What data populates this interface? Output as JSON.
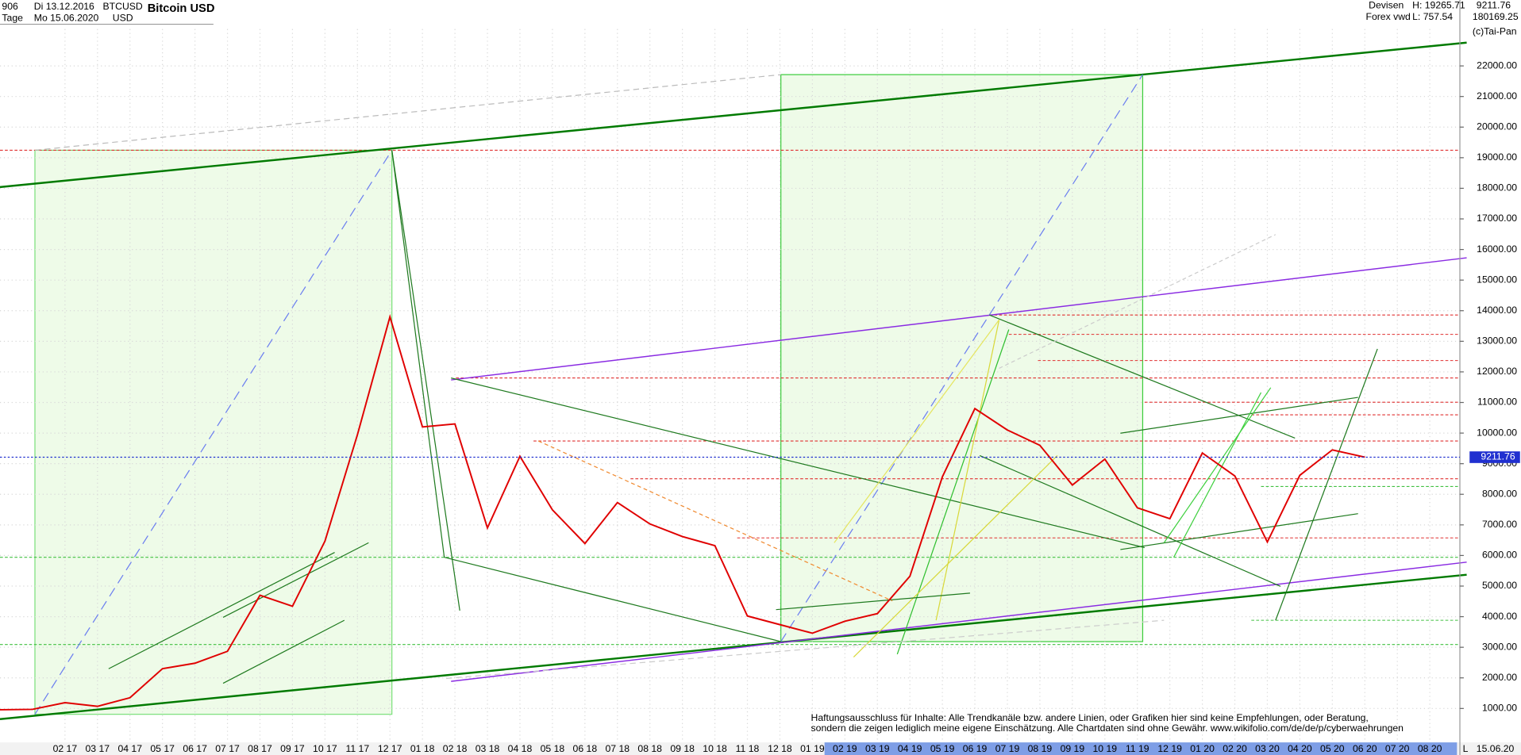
{
  "header": {
    "count": "906",
    "start_date": "Di 13.12.2016",
    "period": "Tage",
    "end_date": "Mo 15.06.2020",
    "symbol": "BTCUSD",
    "currency": "USD",
    "title": "Bitcoin USD",
    "market": "Devisen",
    "source": "Forex vwd",
    "high": "H: 19265.71",
    "low": "L: 757.54",
    "volume": "180169.25",
    "copyright": "(c)Tai-Pan"
  },
  "disclaimer": [
    "Haftungsausschluss für Inhalte: Alle Trendkanäle bzw. andere Linien, oder Grafiken hier sind keine Empfehlungen, oder Beratung,",
    "sondern die zeigen lediglich meine eigene Einschätzung. Alle Chartdaten sind ohne Gewähr.  www.wikifolio.com/de/de/p/cyberwaehrungen"
  ],
  "chart_data": {
    "type": "line",
    "title": "Bitcoin USD",
    "categories": [
      null,
      null,
      "02 17",
      "03 17",
      "04 17",
      "05 17",
      "06 17",
      "07 17",
      "08 17",
      "09 17",
      "10 17",
      "11 17",
      "12 17",
      "01 18",
      "02 18",
      "03 18",
      "04 18",
      "05 18",
      "06 18",
      "07 18",
      "08 18",
      "09 18",
      "10 18",
      "11 18",
      "12 18",
      "01 19",
      "02 19",
      "03 19",
      "04 19",
      "05 19",
      "06 19",
      "07 19",
      "08 19",
      "09 19",
      "10 19",
      "11 19",
      "12 19",
      "01 20",
      "02 20",
      "03 20",
      "04 20",
      "05 20",
      "06 20",
      "07 20",
      "08 20"
    ],
    "series": [
      {
        "name": "BTCUSD",
        "color": "#e00000",
        "values": [
          960,
          970,
          1190,
          1070,
          1350,
          2300,
          2480,
          2870,
          4700,
          4340,
          6470,
          9950,
          13800,
          10200,
          10300,
          6900,
          9240,
          7490,
          6390,
          7730,
          7030,
          6620,
          6320,
          4020,
          3740,
          3460,
          3850,
          4100,
          5320,
          8570,
          10800,
          10100,
          9600,
          8300,
          9150,
          7560,
          7200,
          9350,
          8600,
          6440,
          8620,
          9450,
          9211.76,
          null,
          null
        ]
      }
    ],
    "last_price": 9211.76,
    "x_end_label": "15.06.20",
    "axis_corner": "L",
    "ylim": [
      -109,
      24154
    ],
    "yticks": [
      {
        "value": 1000,
        "label": "1000.00"
      },
      {
        "value": 2000,
        "label": "2000.00"
      },
      {
        "value": 3000,
        "label": "3000.00"
      },
      {
        "value": 4000,
        "label": "4000.00"
      },
      {
        "value": 5000,
        "label": "5000.00"
      },
      {
        "value": 6000,
        "label": "6000.00"
      },
      {
        "value": 7000,
        "label": "7000.00"
      },
      {
        "value": 8000,
        "label": "8000.00"
      },
      {
        "value": 9000,
        "label": "9000.00"
      },
      {
        "value": 10000,
        "label": "10000.00"
      },
      {
        "value": 11000,
        "label": "11000.00"
      },
      {
        "value": 12000,
        "label": "12000.00"
      },
      {
        "value": 13000,
        "label": "13000.00"
      },
      {
        "value": 14000,
        "label": "14000.00"
      },
      {
        "value": 15000,
        "label": "15000.00"
      },
      {
        "value": 16000,
        "label": "16000.00"
      },
      {
        "value": 17000,
        "label": "17000.00"
      },
      {
        "value": 18000,
        "label": "18000.00"
      },
      {
        "value": 19000,
        "label": "19000.00"
      },
      {
        "value": 20000,
        "label": "20000.00"
      },
      {
        "value": 21000,
        "label": "21000.00"
      },
      {
        "value": 22000,
        "label": "22000.00"
      }
    ],
    "grid": true
  }
}
